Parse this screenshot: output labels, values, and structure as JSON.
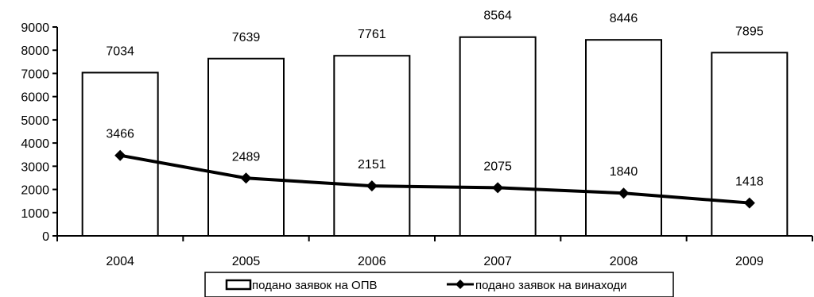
{
  "chart_data": {
    "type": "bar",
    "categories": [
      "2004",
      "2005",
      "2006",
      "2007",
      "2008",
      "2009"
    ],
    "series": [
      {
        "name": "подано заявок на ОПВ",
        "type": "bar",
        "values": [
          7034,
          7639,
          7761,
          8564,
          8446,
          7895
        ],
        "color": "#ffffff"
      },
      {
        "name": "подано заявок на винаходи",
        "type": "line",
        "marker": "diamond",
        "values": [
          3466,
          2489,
          2151,
          2075,
          1840,
          1418
        ],
        "color": "#000000"
      }
    ],
    "yticks": [
      "0",
      "1000",
      "2000",
      "3000",
      "4000",
      "5000",
      "6000",
      "7000",
      "8000",
      "9000"
    ],
    "ylim": [
      0,
      9000
    ],
    "grid": false,
    "legend_position": "bottom"
  }
}
